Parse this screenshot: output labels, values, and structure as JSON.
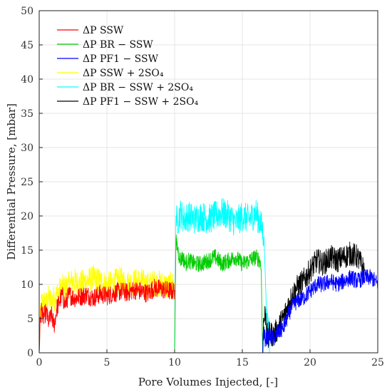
{
  "chart_data": {
    "type": "line",
    "title": "",
    "xlabel": "Pore Volumes Injected, [-]",
    "ylabel": "Differential Pressure, [mbar]",
    "xlim": [
      0,
      25
    ],
    "ylim": [
      0,
      50
    ],
    "xticks": [
      0,
      5,
      10,
      15,
      20,
      25
    ],
    "yticks": [
      0,
      5,
      10,
      15,
      20,
      25,
      30,
      35,
      40,
      45,
      50
    ],
    "grid": true,
    "legend_position": "top-left",
    "series": [
      {
        "name": "ΔP SSW",
        "color": "#ff0000",
        "x": [
          0,
          0.05,
          0.15,
          0.3,
          0.5,
          0.7,
          0.9,
          1.1,
          1.3,
          1.5,
          1.7,
          1.9,
          2.2,
          2.6,
          3.0,
          3.5,
          4.0,
          4.5,
          5.0,
          5.5,
          6.0,
          6.5,
          7.0,
          7.5,
          8.0,
          8.5,
          9.0,
          9.5,
          9.9,
          10.0
        ],
        "y": [
          0,
          3.5,
          6.5,
          5.0,
          6.0,
          4.5,
          5.5,
          4.0,
          6.5,
          7.5,
          8.5,
          7.0,
          8.5,
          8.0,
          8.2,
          8.5,
          8.0,
          8.6,
          8.3,
          8.7,
          9.0,
          8.8,
          9.2,
          9.0,
          8.7,
          9.5,
          9.3,
          9.1,
          9.0,
          9.2
        ],
        "noise": 1.4
      },
      {
        "name": "ΔP BR − SSW",
        "color": "#00cc00",
        "x": [
          10.0,
          10.05,
          10.1,
          10.2,
          10.4,
          10.6,
          10.8,
          11.0,
          11.5,
          12.0,
          12.5,
          13.0,
          13.5,
          14.0,
          14.5,
          15.0,
          15.5,
          16.0,
          16.3,
          16.4,
          16.45,
          16.5
        ],
        "y": [
          0,
          8,
          16.5,
          15.5,
          13.5,
          14.0,
          13.0,
          13.5,
          13.0,
          13.0,
          13.5,
          14.0,
          13.0,
          13.5,
          14.0,
          13.0,
          13.5,
          14.0,
          13.5,
          12.0,
          5.0,
          0
        ],
        "noise": 1.2
      },
      {
        "name": "ΔP PF1 − SSW",
        "color": "#0000ff",
        "x": [
          16.5,
          16.55,
          16.7,
          17.0,
          17.3,
          17.6,
          18.0,
          18.3,
          18.6,
          19.0,
          19.5,
          20.0,
          20.5,
          21.0,
          21.5,
          22.0,
          22.5,
          23.0,
          23.5,
          24.0,
          24.5,
          24.8,
          25.0
        ],
        "y": [
          0,
          3,
          2,
          2.5,
          2,
          3,
          3.5,
          5,
          6.5,
          7.5,
          8,
          9,
          10,
          10,
          10.5,
          10,
          10.5,
          11,
          10.5,
          11,
          11,
          10.5,
          10
        ],
        "noise": 1.2
      },
      {
        "name": "ΔP SSW + 2SO₄",
        "color": "#ffff00",
        "x": [
          0,
          0.05,
          0.15,
          0.3,
          0.5,
          0.7,
          0.9,
          1.1,
          1.3,
          1.5,
          1.7,
          2.0,
          2.5,
          3.0,
          3.5,
          4.0,
          4.5,
          5.0,
          5.5,
          6.0,
          6.5,
          7.0,
          7.5,
          8.0,
          8.5,
          9.0,
          9.5,
          9.9,
          10.0
        ],
        "y": [
          0,
          4,
          7,
          7.5,
          7,
          8,
          7.5,
          8,
          8.5,
          9,
          9.5,
          9.5,
          10.5,
          10,
          10.5,
          10.8,
          10.5,
          9.8,
          10.2,
          10.6,
          10,
          10.3,
          10.5,
          9.8,
          10.2,
          10,
          9.7,
          10,
          10.2
        ],
        "noise": 2.0
      },
      {
        "name": "ΔP BR − SSW + 2SO₄",
        "color": "#00ffff",
        "x": [
          10.0,
          10.05,
          10.1,
          10.2,
          10.4,
          10.7,
          11.0,
          11.5,
          12.0,
          12.5,
          13.0,
          13.5,
          14.0,
          14.5,
          15.0,
          15.5,
          16.0,
          16.4,
          16.6,
          16.8,
          16.95,
          17.0
        ],
        "y": [
          0,
          10,
          20,
          19,
          20.5,
          19.5,
          20,
          19.5,
          20,
          19.5,
          20,
          20.5,
          20,
          19,
          20,
          19.5,
          20.5,
          18.5,
          17,
          5,
          3,
          0
        ],
        "noise": 2.2
      },
      {
        "name": "ΔP PF1 − SSW + 2SO₄",
        "color": "#000000",
        "x": [
          16.5,
          16.55,
          16.7,
          16.9,
          17.0,
          17.3,
          17.6,
          18.0,
          18.3,
          18.6,
          19.0,
          19.5,
          20.0,
          20.5,
          21.0,
          21.5,
          22.0,
          22.5,
          23.0,
          23.5,
          24.0
        ],
        "y": [
          0,
          4,
          6,
          1.5,
          3,
          2.5,
          3.5,
          5,
          6.5,
          8,
          9.5,
          10.5,
          12,
          13.5,
          13,
          14,
          13.5,
          14,
          14.5,
          14,
          12
        ],
        "noise": 1.8
      }
    ]
  }
}
